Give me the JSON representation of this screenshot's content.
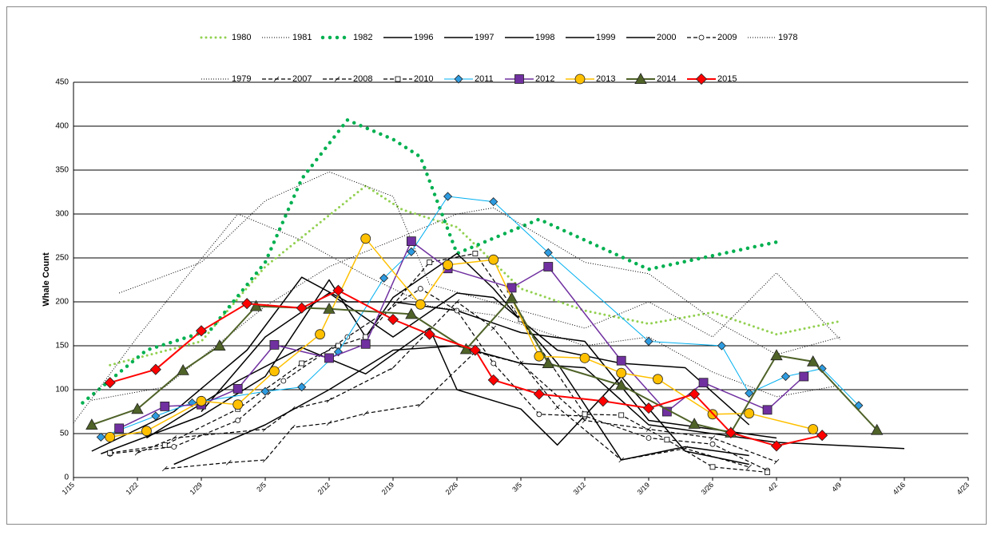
{
  "chart_data": {
    "type": "line",
    "y_label": "Whale Count",
    "xlim": [
      "1/15",
      "4/23"
    ],
    "xticks": [
      "1/15",
      "1/22",
      "1/29",
      "2/5",
      "2/12",
      "2/19",
      "2/26",
      "3/5",
      "3/12",
      "3/19",
      "3/26",
      "4/2",
      "4/9",
      "4/16",
      "4/23"
    ],
    "ylim": [
      0,
      450
    ],
    "yticks": [
      0,
      50,
      100,
      150,
      200,
      250,
      300,
      350,
      400,
      450
    ],
    "grid": true,
    "series": [
      {
        "name": "1980",
        "color": "#92d050",
        "style": "round-dot",
        "line_width": 3,
        "x": [
          "1/19",
          "1/29",
          "2/5",
          "2/16",
          "2/20",
          "2/26",
          "3/5",
          "3/12",
          "3/19",
          "3/26",
          "4/2",
          "4/9"
        ],
        "values": [
          128,
          155,
          240,
          332,
          305,
          285,
          215,
          190,
          175,
          188,
          163,
          178
        ]
      },
      {
        "name": "1981",
        "color": "#000000",
        "style": "dot",
        "line_width": 1,
        "x": [
          "1/20",
          "1/29",
          "2/5",
          "2/12",
          "2/19",
          "2/23",
          "3/5",
          "3/12",
          "3/19",
          "3/26",
          "4/2",
          "4/9"
        ],
        "values": [
          210,
          245,
          315,
          348,
          320,
          220,
          190,
          170,
          200,
          160,
          233,
          157
        ]
      },
      {
        "name": "1982",
        "color": "#00b050",
        "style": "round-dot",
        "line_width": 4.5,
        "x": [
          "1/16",
          "1/23",
          "1/30",
          "2/5",
          "2/9",
          "2/14",
          "2/19",
          "2/22",
          "2/26",
          "3/7",
          "3/19",
          "4/2"
        ],
        "values": [
          85,
          145,
          168,
          245,
          340,
          407,
          385,
          365,
          255,
          294,
          237,
          268
        ]
      },
      {
        "name": "1996",
        "color": "#000000",
        "style": "solid",
        "line_width": 1.5,
        "x": [
          "1/17",
          "1/26",
          "2/3",
          "2/9",
          "2/14",
          "2/19",
          "2/26",
          "3/5",
          "3/12",
          "3/19",
          "3/26",
          "4/2"
        ],
        "values": [
          30,
          75,
          145,
          228,
          200,
          200,
          190,
          165,
          155,
          65,
          55,
          45
        ]
      },
      {
        "name": "1997",
        "color": "#000000",
        "style": "solid",
        "line_width": 1.5,
        "x": [
          "1/18",
          "1/29",
          "2/5",
          "2/12",
          "2/16",
          "2/19",
          "2/26",
          "3/2",
          "3/9",
          "3/16",
          "3/23",
          "3/30"
        ],
        "values": [
          27,
          70,
          115,
          225,
          160,
          205,
          255,
          215,
          130,
          20,
          35,
          25
        ]
      },
      {
        "name": "1998",
        "color": "#000000",
        "style": "solid",
        "line_width": 1.5,
        "x": [
          "1/26",
          "2/5",
          "2/12",
          "2/19",
          "2/26",
          "3/5",
          "3/12",
          "3/19",
          "3/26",
          "4/2",
          "4/16"
        ],
        "values": [
          15,
          60,
          100,
          145,
          150,
          130,
          125,
          60,
          50,
          40,
          33
        ]
      },
      {
        "name": "1999",
        "color": "#000000",
        "style": "solid",
        "line_width": 1.5,
        "x": [
          "1/23",
          "2/2",
          "2/9",
          "2/16",
          "2/23",
          "2/26",
          "3/5",
          "3/9",
          "3/16",
          "3/23",
          "3/30"
        ],
        "values": [
          45,
          110,
          148,
          118,
          170,
          100,
          78,
          37,
          115,
          30,
          15
        ]
      },
      {
        "name": "2000",
        "color": "#000000",
        "style": "solid",
        "line_width": 1.5,
        "x": [
          "1/29",
          "2/5",
          "2/12",
          "2/19",
          "2/26",
          "3/2",
          "3/9",
          "3/16",
          "3/23",
          "3/30"
        ],
        "values": [
          75,
          160,
          210,
          160,
          210,
          205,
          145,
          130,
          125,
          60
        ]
      },
      {
        "name": "2009",
        "color": "#000000",
        "style": "dash",
        "line_width": 1.2,
        "marker": "circle",
        "marker_color": "#ffffff",
        "marker_size": 3,
        "x": [
          "1/19",
          "1/26",
          "2/2",
          "2/7",
          "2/14",
          "2/22",
          "2/26",
          "3/2",
          "3/7",
          "3/12",
          "3/19",
          "3/26",
          "4/1"
        ],
        "values": [
          27,
          35,
          65,
          110,
          160,
          215,
          190,
          130,
          72,
          70,
          45,
          38,
          8
        ]
      },
      {
        "name": "1978",
        "color": "#000000",
        "style": "dot",
        "line_width": 1,
        "x": [
          "1/15",
          "1/22",
          "2/2",
          "2/9",
          "2/16",
          "2/23",
          "3/2",
          "3/12",
          "3/19",
          "3/26",
          "4/2",
          "4/9"
        ],
        "values": [
          62,
          160,
          300,
          270,
          230,
          195,
          185,
          150,
          160,
          120,
          92,
          105
        ]
      },
      {
        "name": "1979",
        "color": "#000000",
        "style": "dot",
        "line_width": 1,
        "x": [
          "1/17",
          "1/25",
          "2/5",
          "2/12",
          "2/26",
          "3/2",
          "3/12",
          "3/19",
          "3/26",
          "4/2",
          "4/9"
        ],
        "values": [
          88,
          103,
          195,
          240,
          300,
          307,
          245,
          232,
          180,
          140,
          160
        ]
      },
      {
        "name": "2007",
        "color": "#000000",
        "style": "dash",
        "line_width": 1.2,
        "marker": "tick",
        "marker_color": "#000000",
        "marker_size": 3,
        "x": [
          "1/22",
          "1/26",
          "2/5",
          "2/8",
          "2/12",
          "2/19",
          "2/26",
          "3/2",
          "3/9",
          "3/16",
          "3/23",
          "3/30"
        ],
        "values": [
          28,
          45,
          55,
          78,
          88,
          125,
          200,
          170,
          80,
          20,
          33,
          12
        ]
      },
      {
        "name": "2008",
        "color": "#000000",
        "style": "dash",
        "line_width": 1.2,
        "marker": "tick",
        "marker_color": "#000000",
        "marker_size": 3,
        "x": [
          "1/25",
          "2/1",
          "2/5",
          "2/8",
          "2/12",
          "2/16",
          "2/22",
          "2/28",
          "3/5",
          "3/12",
          "3/19",
          "3/26",
          "4/2"
        ],
        "values": [
          10,
          17,
          20,
          57,
          62,
          73,
          83,
          143,
          130,
          65,
          55,
          45,
          18
        ]
      },
      {
        "name": "2010",
        "color": "#000000",
        "style": "dash",
        "line_width": 1.2,
        "marker": "square",
        "marker_color": "#ffffff",
        "marker_size": 3,
        "x": [
          "1/19",
          "1/25",
          "2/2",
          "2/9",
          "2/13",
          "2/16",
          "2/23",
          "2/28",
          "3/5",
          "3/12",
          "3/16",
          "3/21",
          "3/26",
          "4/1"
        ],
        "values": [
          28,
          37,
          78,
          130,
          150,
          160,
          245,
          255,
          180,
          72,
          71,
          43,
          12,
          6
        ]
      },
      {
        "name": "2011",
        "color": "#00b0f0",
        "style": "solid",
        "line_width": 1,
        "marker": "diamond",
        "marker_color": "#2e9be0",
        "marker_size": 5,
        "x": [
          "1/18",
          "1/24",
          "1/28",
          "2/5",
          "2/9",
          "2/13",
          "2/18",
          "2/21",
          "2/25",
          "3/2",
          "3/8",
          "3/19",
          "3/27",
          "3/30",
          "4/3",
          "4/7",
          "4/11"
        ],
        "values": [
          46,
          70,
          85,
          98,
          103,
          143,
          227,
          257,
          320,
          314,
          256,
          155,
          150,
          96,
          115,
          124,
          82
        ]
      },
      {
        "name": "2012",
        "color": "#7030a0",
        "style": "solid",
        "line_width": 1.5,
        "marker": "square",
        "marker_color": "#7030a0",
        "marker_size": 5.5,
        "x": [
          "1/20",
          "1/25",
          "1/29",
          "2/2",
          "2/6",
          "2/12",
          "2/16",
          "2/21",
          "2/25",
          "3/4",
          "3/8",
          "3/16",
          "3/21",
          "3/25",
          "4/1",
          "4/5"
        ],
        "values": [
          56,
          81,
          83,
          101,
          151,
          136,
          152,
          269,
          238,
          216,
          240,
          133,
          75,
          108,
          77,
          115
        ]
      },
      {
        "name": "2013",
        "color": "#ffc000",
        "style": "solid",
        "line_width": 1.5,
        "marker": "circle",
        "marker_color": "#ffc000",
        "marker_size": 6,
        "x": [
          "1/19",
          "1/23",
          "1/29",
          "2/2",
          "2/6",
          "2/11",
          "2/16",
          "2/22",
          "2/25",
          "3/2",
          "3/7",
          "3/12",
          "3/16",
          "3/20",
          "3/26",
          "3/30",
          "4/6"
        ],
        "values": [
          46,
          53,
          87,
          83,
          121,
          163,
          272,
          197,
          242,
          248,
          138,
          136,
          119,
          112,
          72,
          73,
          55
        ]
      },
      {
        "name": "2014",
        "color": "#4f6228",
        "style": "solid",
        "line_width": 2,
        "marker": "triangle",
        "marker_color": "#4f6228",
        "marker_size": 7,
        "x": [
          "1/17",
          "1/22",
          "1/27",
          "1/31",
          "2/4",
          "2/12",
          "2/21",
          "2/27",
          "3/4",
          "3/8",
          "3/16",
          "3/24",
          "3/28",
          "4/2",
          "4/6",
          "4/13"
        ],
        "values": [
          60,
          78,
          122,
          150,
          195,
          192,
          186,
          146,
          204,
          130,
          105,
          61,
          51,
          139,
          132,
          54
        ]
      },
      {
        "name": "2015",
        "color": "#ff0000",
        "style": "solid",
        "line_width": 2,
        "marker": "diamond",
        "marker_color": "#ff0000",
        "marker_size": 6.5,
        "x": [
          "1/19",
          "1/24",
          "1/29",
          "2/3",
          "2/9",
          "2/13",
          "2/19",
          "2/23",
          "2/28",
          "3/2",
          "3/7",
          "3/14",
          "3/19",
          "3/24",
          "3/28",
          "4/2",
          "4/7"
        ],
        "values": [
          108,
          123,
          167,
          198,
          193,
          213,
          180,
          163,
          145,
          111,
          95,
          87,
          79,
          95,
          51,
          36,
          48
        ]
      }
    ]
  }
}
